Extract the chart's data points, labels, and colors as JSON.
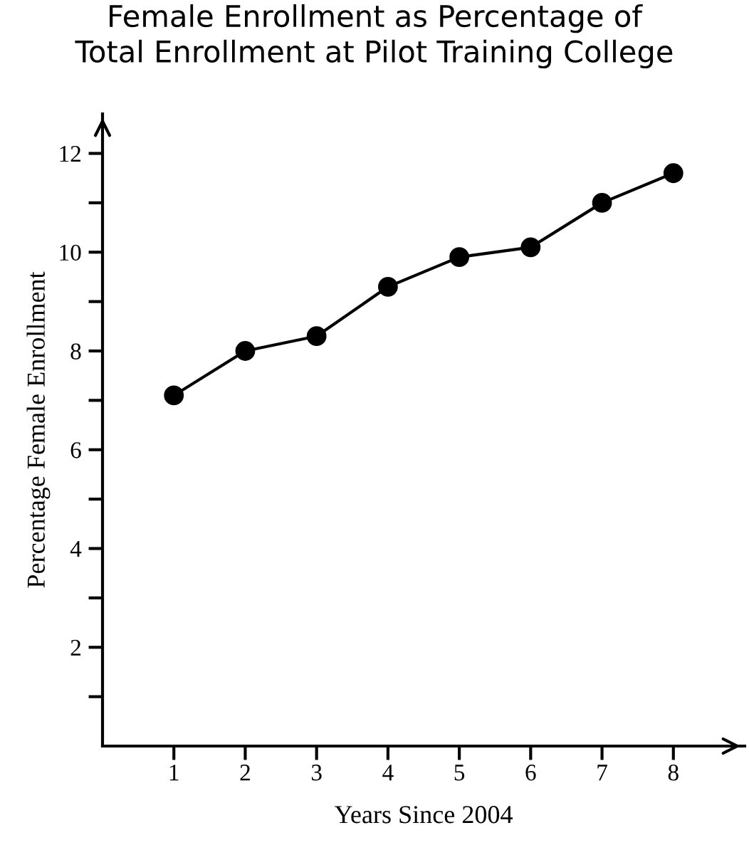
{
  "chart_data": {
    "type": "line",
    "title": "Female Enrollment as Percentage of\nTotal Enrollment at Pilot Training College",
    "xlabel": "Years Since 2004",
    "ylabel": "Percentage Female Enrollment",
    "x": [
      1,
      2,
      3,
      4,
      5,
      6,
      7,
      8
    ],
    "series": [
      {
        "color": "#000000",
        "values": [
          7.1,
          8.0,
          8.3,
          9.3,
          9.9,
          10.1,
          11.0,
          11.6
        ]
      }
    ],
    "xlim": [
      0,
      9
    ],
    "ylim": [
      0,
      12.8
    ],
    "xticks": [
      1,
      2,
      3,
      4,
      5,
      6,
      7,
      8
    ],
    "yticks": [
      {
        "value": 1,
        "label": null
      },
      2,
      {
        "value": 3,
        "label": null
      },
      4,
      {
        "value": 5,
        "label": null
      },
      6,
      {
        "value": 7,
        "label": null
      },
      8,
      {
        "value": 9,
        "label": null
      },
      10,
      {
        "value": 11,
        "label": null
      },
      12
    ],
    "marker": "circle",
    "line_style": "solid",
    "grid": false,
    "legend": false
  }
}
